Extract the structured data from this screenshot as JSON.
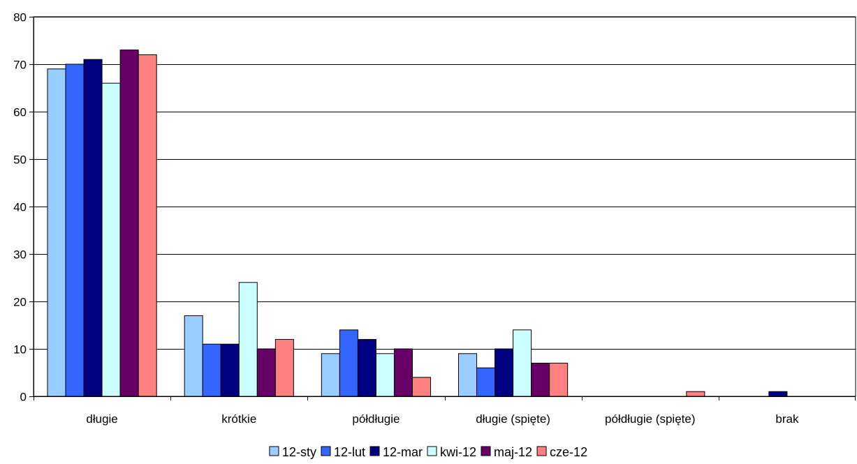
{
  "chart_data": {
    "type": "bar",
    "title": "",
    "xlabel": "",
    "ylabel": "",
    "ylim": [
      0,
      80
    ],
    "yticks": [
      0,
      10,
      20,
      30,
      40,
      50,
      60,
      70,
      80
    ],
    "grid": true,
    "legend_position": "bottom",
    "categories": [
      "długie",
      "krótkie",
      "półdługie",
      "długie (spięte)",
      "półdługie (spięte)",
      "brak"
    ],
    "series": [
      {
        "name": "12-sty",
        "color": "#99CCFF",
        "values": [
          69,
          17,
          9,
          9,
          0,
          0
        ]
      },
      {
        "name": "12-lut",
        "color": "#3366FF",
        "values": [
          70,
          11,
          14,
          6,
          0,
          0
        ]
      },
      {
        "name": "12-mar",
        "color": "#000080",
        "values": [
          71,
          11,
          12,
          10,
          0,
          1
        ]
      },
      {
        "name": "kwi-12",
        "color": "#CCFFFF",
        "values": [
          66,
          24,
          9,
          14,
          0,
          0
        ]
      },
      {
        "name": "maj-12",
        "color": "#660066",
        "values": [
          73,
          10,
          10,
          7,
          0,
          0
        ]
      },
      {
        "name": "cze-12",
        "color": "#FF8080",
        "values": [
          72,
          12,
          4,
          7,
          1,
          0
        ]
      }
    ]
  }
}
